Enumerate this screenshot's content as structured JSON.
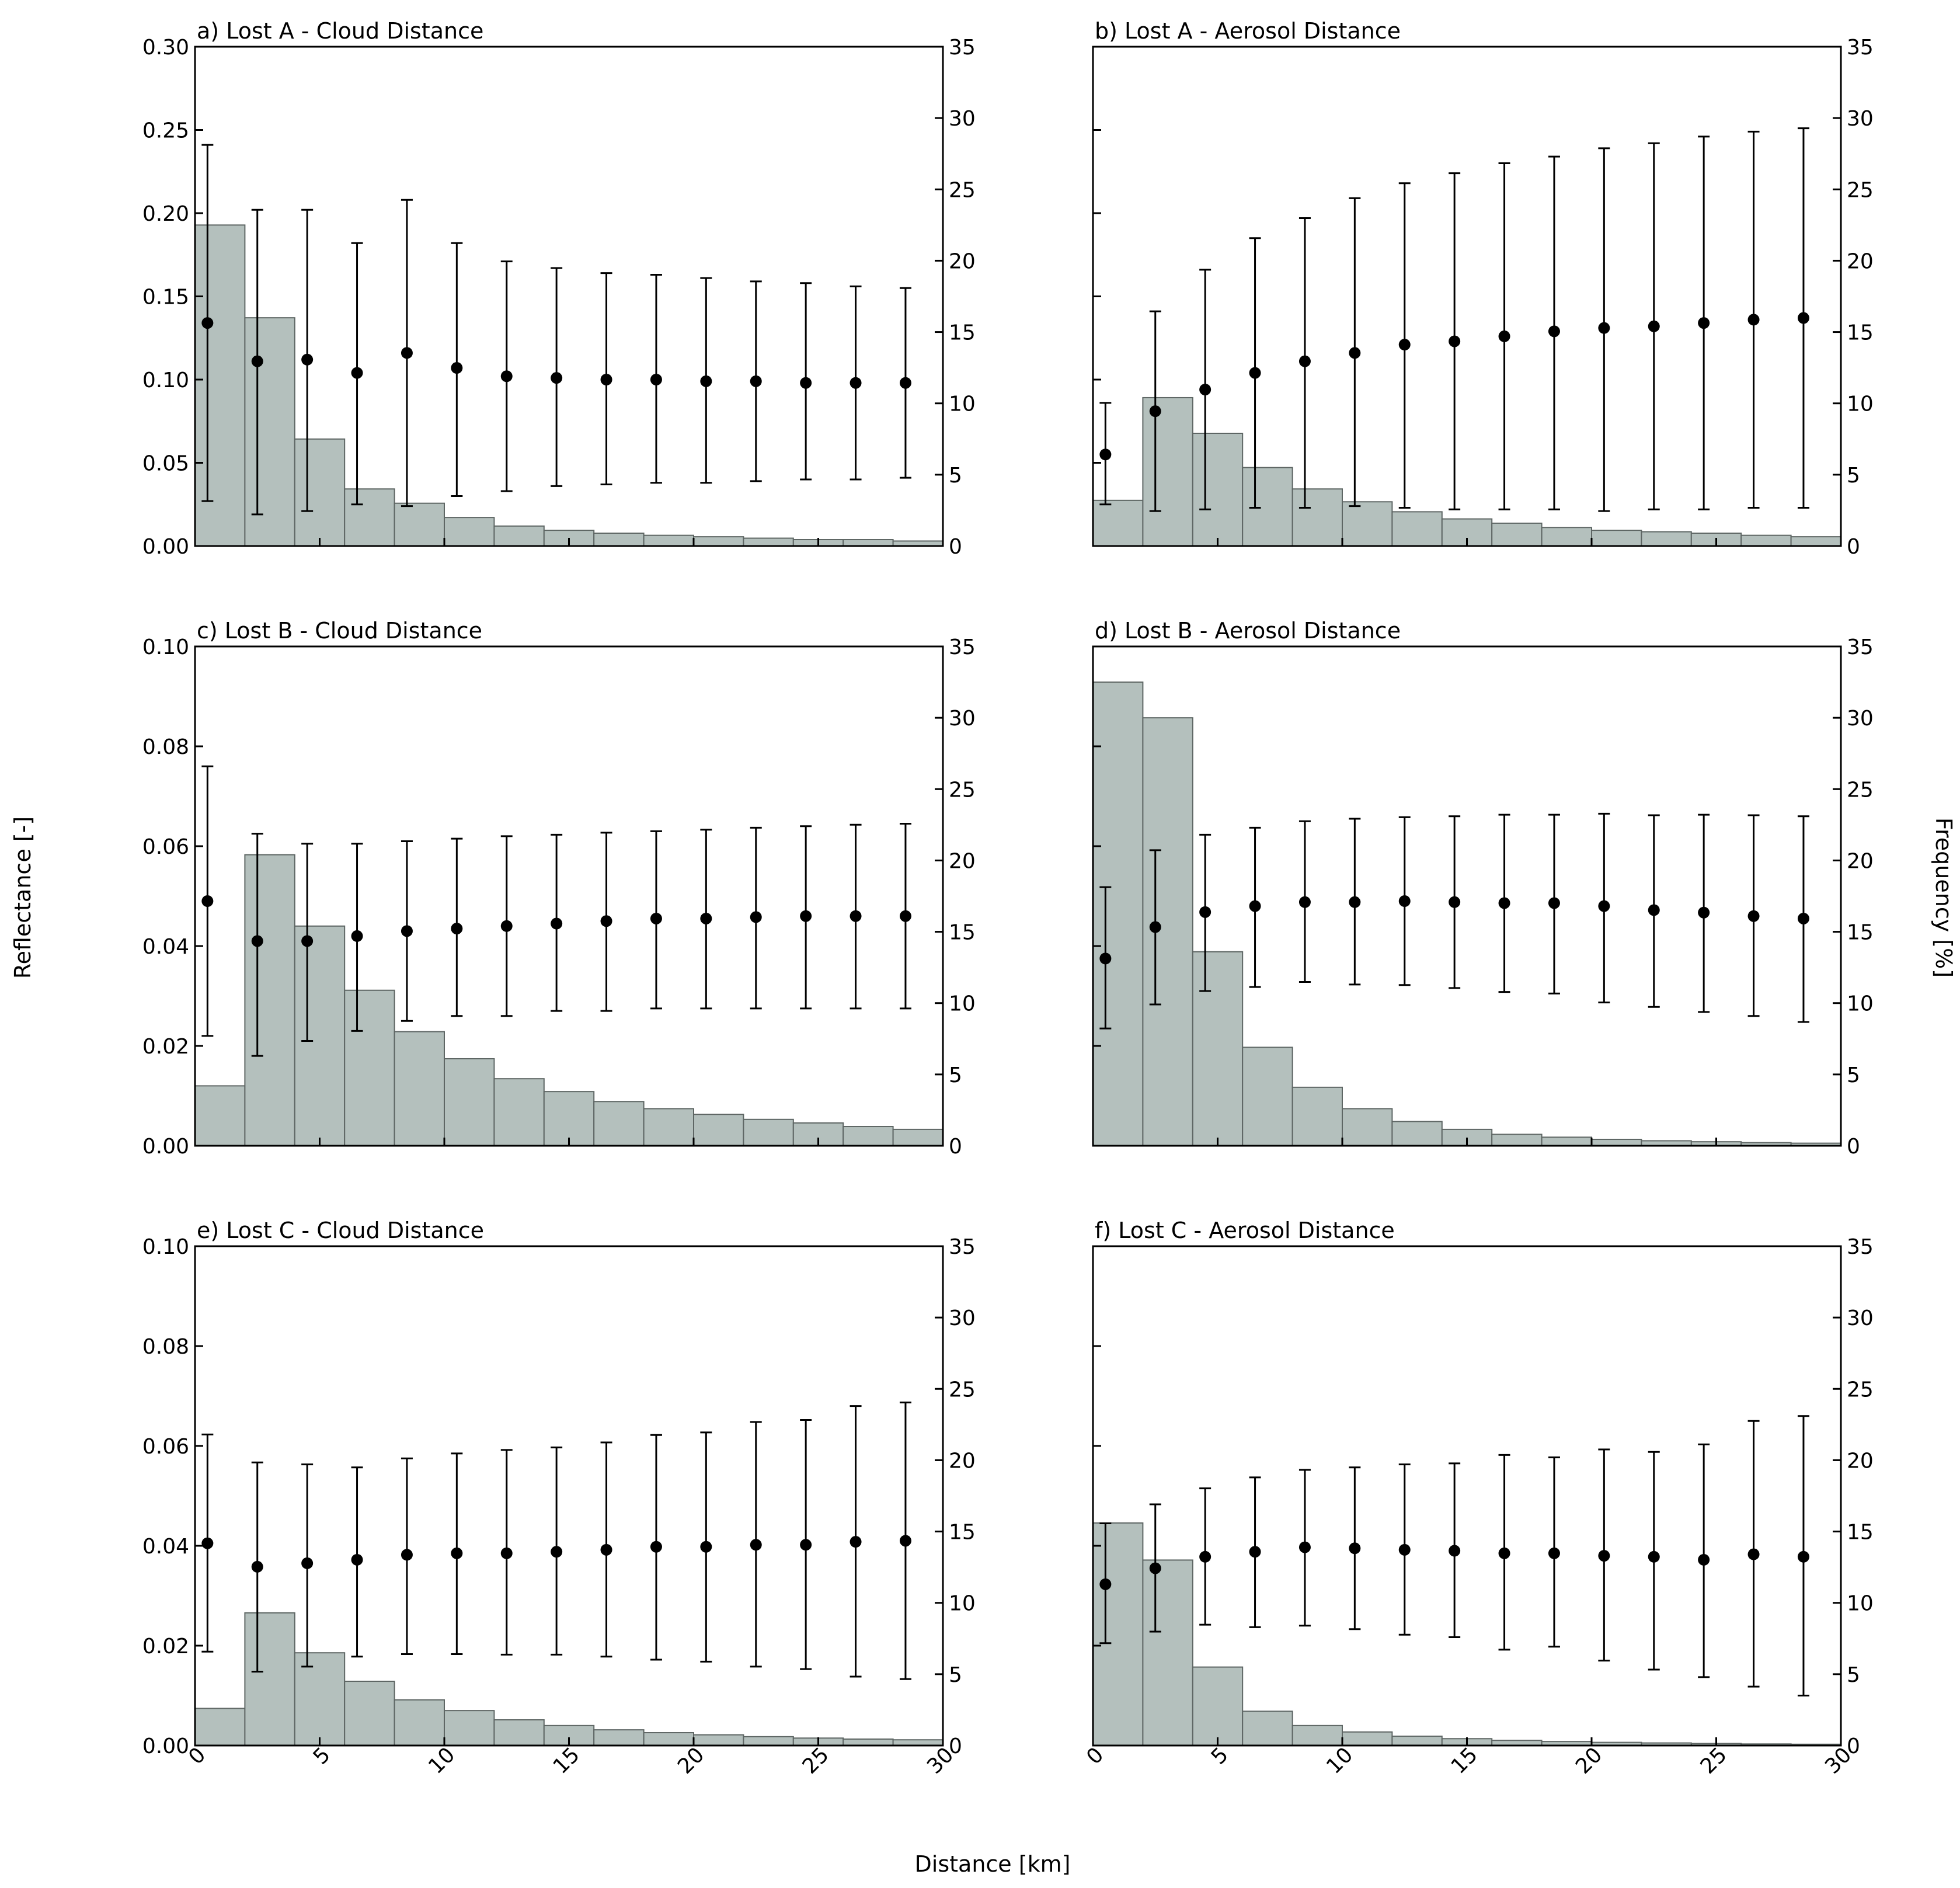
{
  "figure": {
    "y_left_label": "Reflectance [-]",
    "y_right_label": "Frequency [%]",
    "x_label": "Distance [km]"
  },
  "colors": {
    "bar_fill": "#b4c0bd",
    "bar_stroke": "#5e6664",
    "marker": "#000000",
    "axis": "#000000"
  },
  "chart_data": [
    {
      "id": "a",
      "type": "bar+errorbar",
      "title": "a) Lost A - Cloud Distance",
      "xlabel": "Distance [km]",
      "ylabel": "Reflectance [-]",
      "y2label": "Frequency [%]",
      "xlim": [
        0,
        30
      ],
      "ylim": [
        0,
        0.3
      ],
      "y2lim": [
        0,
        35
      ],
      "x_ticks": [
        0,
        5,
        10,
        15,
        20,
        25,
        30
      ],
      "x_tick_labels": [
        "0",
        "5",
        "10",
        "15",
        "20",
        "25",
        "30"
      ],
      "show_x_tick_labels": false,
      "y_ticks": [
        0,
        0.05,
        0.1,
        0.15,
        0.2,
        0.25,
        0.3
      ],
      "y_tick_labels": [
        "0.00",
        "0.05",
        "0.10",
        "0.15",
        "0.20",
        "0.25",
        "0.30"
      ],
      "show_y_tick_labels": true,
      "y2_ticks": [
        0,
        5,
        10,
        15,
        20,
        25,
        30,
        35
      ],
      "y2_tick_labels": [
        "0",
        "5",
        "10",
        "15",
        "20",
        "25",
        "30",
        "35"
      ],
      "bin_edges": [
        0,
        2,
        4,
        6,
        8,
        10,
        12,
        14,
        16,
        18,
        20,
        22,
        24,
        26,
        28,
        30
      ],
      "frequency": [
        22.5,
        16.0,
        7.5,
        4.0,
        3.0,
        2.0,
        1.4,
        1.1,
        0.9,
        0.75,
        0.65,
        0.55,
        0.45,
        0.45,
        0.35
      ],
      "x": [
        0.5,
        2.5,
        4.5,
        6.5,
        8.5,
        10.5,
        12.5,
        14.5,
        16.5,
        18.5,
        20.5,
        22.5,
        24.5,
        26.5,
        28.5
      ],
      "mean": [
        0.134,
        0.111,
        0.112,
        0.104,
        0.116,
        0.107,
        0.102,
        0.101,
        0.1,
        0.1,
        0.099,
        0.099,
        0.098,
        0.098,
        0.098
      ],
      "err_low": [
        0.027,
        0.019,
        0.021,
        0.025,
        0.024,
        0.03,
        0.033,
        0.036,
        0.037,
        0.038,
        0.038,
        0.039,
        0.04,
        0.04,
        0.041
      ],
      "err_high": [
        0.241,
        0.202,
        0.202,
        0.182,
        0.208,
        0.182,
        0.171,
        0.167,
        0.164,
        0.163,
        0.161,
        0.159,
        0.158,
        0.156,
        0.155
      ]
    },
    {
      "id": "b",
      "type": "bar+errorbar",
      "title": "b) Lost A - Aerosol Distance",
      "xlabel": "Distance [km]",
      "ylabel": "Reflectance [-]",
      "y2label": "Frequency [%]",
      "xlim": [
        0,
        30
      ],
      "ylim": [
        0,
        0.3
      ],
      "y2lim": [
        0,
        35
      ],
      "x_ticks": [
        0,
        5,
        10,
        15,
        20,
        25,
        30
      ],
      "x_tick_labels": [
        "0",
        "5",
        "10",
        "15",
        "20",
        "25",
        "30"
      ],
      "show_x_tick_labels": false,
      "y_ticks": [
        0,
        0.05,
        0.1,
        0.15,
        0.2,
        0.25,
        0.3
      ],
      "y_tick_labels": [
        "0.00",
        "0.05",
        "0.10",
        "0.15",
        "0.20",
        "0.25",
        "0.30"
      ],
      "show_y_tick_labels": false,
      "y2_ticks": [
        0,
        5,
        10,
        15,
        20,
        25,
        30,
        35
      ],
      "y2_tick_labels": [
        "0",
        "5",
        "10",
        "15",
        "20",
        "25",
        "30",
        "35"
      ],
      "bin_edges": [
        0,
        2,
        4,
        6,
        8,
        10,
        12,
        14,
        16,
        18,
        20,
        22,
        24,
        26,
        28,
        30
      ],
      "frequency": [
        3.2,
        10.4,
        7.9,
        5.5,
        4.0,
        3.1,
        2.4,
        1.9,
        1.6,
        1.3,
        1.1,
        1.0,
        0.9,
        0.75,
        0.65
      ],
      "x": [
        0.5,
        2.5,
        4.5,
        6.5,
        8.5,
        10.5,
        12.5,
        14.5,
        16.5,
        18.5,
        20.5,
        22.5,
        24.5,
        26.5,
        28.5
      ],
      "mean": [
        0.055,
        0.081,
        0.094,
        0.104,
        0.111,
        0.116,
        0.121,
        0.123,
        0.126,
        0.129,
        0.131,
        0.132,
        0.134,
        0.136,
        0.137
      ],
      "err_low": [
        0.025,
        0.021,
        0.022,
        0.023,
        0.023,
        0.024,
        0.023,
        0.022,
        0.022,
        0.022,
        0.021,
        0.022,
        0.022,
        0.023,
        0.023
      ],
      "err_high": [
        0.086,
        0.141,
        0.166,
        0.185,
        0.197,
        0.209,
        0.218,
        0.224,
        0.23,
        0.234,
        0.239,
        0.242,
        0.246,
        0.249,
        0.251
      ]
    },
    {
      "id": "c",
      "type": "bar+errorbar",
      "title": "c) Lost B - Cloud Distance",
      "xlabel": "Distance [km]",
      "ylabel": "Reflectance [-]",
      "y2label": "Frequency [%]",
      "xlim": [
        0,
        30
      ],
      "ylim": [
        0,
        0.1
      ],
      "y2lim": [
        0,
        35
      ],
      "x_ticks": [
        0,
        5,
        10,
        15,
        20,
        25,
        30
      ],
      "x_tick_labels": [
        "0",
        "5",
        "10",
        "15",
        "20",
        "25",
        "30"
      ],
      "show_x_tick_labels": false,
      "y_ticks": [
        0,
        0.02,
        0.04,
        0.06,
        0.08,
        0.1
      ],
      "y_tick_labels": [
        "0.00",
        "0.02",
        "0.04",
        "0.06",
        "0.08",
        "0.10"
      ],
      "show_y_tick_labels": true,
      "y2_ticks": [
        0,
        5,
        10,
        15,
        20,
        25,
        30,
        35
      ],
      "y2_tick_labels": [
        "0",
        "5",
        "10",
        "15",
        "20",
        "25",
        "30",
        "35"
      ],
      "bin_edges": [
        0,
        2,
        4,
        6,
        8,
        10,
        12,
        14,
        16,
        18,
        20,
        22,
        24,
        26,
        28,
        30
      ],
      "frequency": [
        4.2,
        20.4,
        15.4,
        10.9,
        8.0,
        6.1,
        4.7,
        3.8,
        3.1,
        2.6,
        2.2,
        1.85,
        1.6,
        1.35,
        1.15
      ],
      "x": [
        0.5,
        2.5,
        4.5,
        6.5,
        8.5,
        10.5,
        12.5,
        14.5,
        16.5,
        18.5,
        20.5,
        22.5,
        24.5,
        26.5,
        28.5
      ],
      "mean": [
        0.049,
        0.041,
        0.041,
        0.042,
        0.043,
        0.0435,
        0.044,
        0.0445,
        0.045,
        0.0455,
        0.0455,
        0.0458,
        0.046,
        0.046,
        0.046
      ],
      "err_low": [
        0.022,
        0.018,
        0.021,
        0.023,
        0.025,
        0.026,
        0.026,
        0.027,
        0.027,
        0.0275,
        0.0275,
        0.0275,
        0.0275,
        0.0275,
        0.0275
      ],
      "err_high": [
        0.076,
        0.0625,
        0.0605,
        0.0605,
        0.061,
        0.0615,
        0.062,
        0.0623,
        0.0627,
        0.063,
        0.0633,
        0.0637,
        0.064,
        0.0643,
        0.0645
      ]
    },
    {
      "id": "d",
      "type": "bar+errorbar",
      "title": "d) Lost B - Aerosol Distance",
      "xlabel": "Distance [km]",
      "ylabel": "Reflectance [-]",
      "y2label": "Frequency [%]",
      "xlim": [
        0,
        30
      ],
      "ylim": [
        0,
        0.1
      ],
      "y2lim": [
        0,
        35
      ],
      "x_ticks": [
        0,
        5,
        10,
        15,
        20,
        25,
        30
      ],
      "x_tick_labels": [
        "0",
        "5",
        "10",
        "15",
        "20",
        "25",
        "30"
      ],
      "show_x_tick_labels": false,
      "y_ticks": [
        0,
        0.02,
        0.04,
        0.06,
        0.08,
        0.1
      ],
      "y_tick_labels": [
        "0.00",
        "0.02",
        "0.04",
        "0.06",
        "0.08",
        "0.10"
      ],
      "show_y_tick_labels": false,
      "y2_ticks": [
        0,
        5,
        10,
        15,
        20,
        25,
        30,
        35
      ],
      "y2_tick_labels": [
        "0",
        "5",
        "10",
        "15",
        "20",
        "25",
        "30",
        "35"
      ],
      "bin_edges": [
        0,
        2,
        4,
        6,
        8,
        10,
        12,
        14,
        16,
        18,
        20,
        22,
        24,
        26,
        28,
        30
      ],
      "frequency": [
        32.5,
        30.0,
        13.6,
        6.9,
        4.1,
        2.6,
        1.7,
        1.15,
        0.8,
        0.6,
        0.45,
        0.35,
        0.28,
        0.22,
        0.18
      ],
      "x": [
        0.5,
        2.5,
        4.5,
        6.5,
        8.5,
        10.5,
        12.5,
        14.5,
        16.5,
        18.5,
        20.5,
        22.5,
        24.5,
        26.5,
        28.5
      ],
      "mean": [
        0.0375,
        0.0438,
        0.0468,
        0.048,
        0.0488,
        0.0488,
        0.049,
        0.0488,
        0.0486,
        0.0486,
        0.048,
        0.0472,
        0.0467,
        0.046,
        0.0455
      ],
      "err_low": [
        0.0235,
        0.0283,
        0.031,
        0.0318,
        0.0328,
        0.0323,
        0.0322,
        0.0316,
        0.0308,
        0.0305,
        0.0287,
        0.0278,
        0.0268,
        0.026,
        0.0248
      ],
      "err_high": [
        0.0518,
        0.0592,
        0.0623,
        0.0637,
        0.065,
        0.0655,
        0.0658,
        0.066,
        0.0663,
        0.0663,
        0.0665,
        0.0662,
        0.0663,
        0.0662,
        0.066
      ]
    },
    {
      "id": "e",
      "type": "bar+errorbar",
      "title": "e) Lost C - Cloud Distance",
      "xlabel": "Distance [km]",
      "ylabel": "Reflectance [-]",
      "y2label": "Frequency [%]",
      "xlim": [
        0,
        30
      ],
      "ylim": [
        0,
        0.1
      ],
      "y2lim": [
        0,
        35
      ],
      "x_ticks": [
        0,
        5,
        10,
        15,
        20,
        25,
        30
      ],
      "x_tick_labels": [
        "0",
        "5",
        "10",
        "15",
        "20",
        "25",
        "30"
      ],
      "show_x_tick_labels": true,
      "y_ticks": [
        0,
        0.02,
        0.04,
        0.06,
        0.08,
        0.1
      ],
      "y_tick_labels": [
        "0.00",
        "0.02",
        "0.04",
        "0.06",
        "0.08",
        "0.10"
      ],
      "show_y_tick_labels": true,
      "y2_ticks": [
        0,
        5,
        10,
        15,
        20,
        25,
        30,
        35
      ],
      "y2_tick_labels": [
        "0",
        "5",
        "10",
        "15",
        "20",
        "25",
        "30",
        "35"
      ],
      "bin_edges": [
        0,
        2,
        4,
        6,
        8,
        10,
        12,
        14,
        16,
        18,
        20,
        22,
        24,
        26,
        28,
        30
      ],
      "frequency": [
        2.6,
        9.3,
        6.5,
        4.5,
        3.2,
        2.45,
        1.8,
        1.4,
        1.1,
        0.9,
        0.75,
        0.62,
        0.52,
        0.45,
        0.4
      ],
      "x": [
        0.5,
        2.5,
        4.5,
        6.5,
        8.5,
        10.5,
        12.5,
        14.5,
        16.5,
        18.5,
        20.5,
        22.5,
        24.5,
        26.5,
        28.5
      ],
      "mean": [
        0.0405,
        0.0358,
        0.0365,
        0.0372,
        0.0382,
        0.0385,
        0.0385,
        0.0388,
        0.0392,
        0.0398,
        0.0398,
        0.0402,
        0.0402,
        0.0408,
        0.041
      ],
      "err_low": [
        0.0188,
        0.0148,
        0.0158,
        0.0178,
        0.0183,
        0.0183,
        0.0182,
        0.0182,
        0.0178,
        0.0172,
        0.0168,
        0.0158,
        0.0153,
        0.0138,
        0.0133
      ],
      "err_high": [
        0.0623,
        0.0567,
        0.0563,
        0.0557,
        0.0575,
        0.0585,
        0.0592,
        0.0597,
        0.0607,
        0.0622,
        0.0627,
        0.0648,
        0.0652,
        0.068,
        0.0687
      ]
    },
    {
      "id": "f",
      "type": "bar+errorbar",
      "title": "f) Lost C - Aerosol Distance",
      "xlabel": "Distance [km]",
      "ylabel": "Reflectance [-]",
      "y2label": "Frequency [%]",
      "xlim": [
        0,
        30
      ],
      "ylim": [
        0,
        0.1
      ],
      "y2lim": [
        0,
        35
      ],
      "x_ticks": [
        0,
        5,
        10,
        15,
        20,
        25,
        30
      ],
      "x_tick_labels": [
        "0",
        "5",
        "10",
        "15",
        "20",
        "25",
        "30"
      ],
      "show_x_tick_labels": true,
      "y_ticks": [
        0,
        0.02,
        0.04,
        0.06,
        0.08,
        0.1
      ],
      "y_tick_labels": [
        "0.00",
        "0.02",
        "0.04",
        "0.06",
        "0.08",
        "0.10"
      ],
      "show_y_tick_labels": false,
      "y2_ticks": [
        0,
        5,
        10,
        15,
        20,
        25,
        30,
        35
      ],
      "y2_tick_labels": [
        "0",
        "5",
        "10",
        "15",
        "20",
        "25",
        "30",
        "35"
      ],
      "bin_edges": [
        0,
        2,
        4,
        6,
        8,
        10,
        12,
        14,
        16,
        18,
        20,
        22,
        24,
        26,
        28,
        30
      ],
      "frequency": [
        15.6,
        13.0,
        5.5,
        2.4,
        1.4,
        0.95,
        0.65,
        0.48,
        0.36,
        0.28,
        0.22,
        0.18,
        0.14,
        0.11,
        0.09
      ],
      "x": [
        0.5,
        2.5,
        4.5,
        6.5,
        8.5,
        10.5,
        12.5,
        14.5,
        16.5,
        18.5,
        20.5,
        22.5,
        24.5,
        26.5,
        28.5
      ],
      "mean": [
        0.0323,
        0.0355,
        0.0378,
        0.0388,
        0.0397,
        0.0395,
        0.0392,
        0.039,
        0.0385,
        0.0385,
        0.038,
        0.0378,
        0.0372,
        0.0383,
        0.0378
      ],
      "err_low": [
        0.0205,
        0.0228,
        0.0242,
        0.0237,
        0.024,
        0.0233,
        0.0222,
        0.0217,
        0.0192,
        0.0198,
        0.017,
        0.0152,
        0.0137,
        0.0118,
        0.01
      ],
      "err_high": [
        0.0445,
        0.0483,
        0.0515,
        0.0537,
        0.0552,
        0.0557,
        0.0563,
        0.0565,
        0.0582,
        0.0577,
        0.0593,
        0.0588,
        0.0603,
        0.065,
        0.066
      ]
    }
  ]
}
